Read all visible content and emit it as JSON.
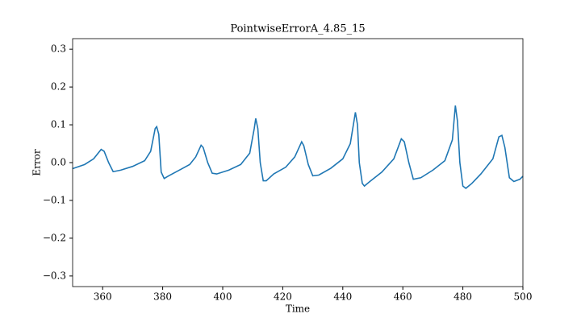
{
  "chart_data": {
    "type": "line",
    "title": "PointwiseErrorA_4.85_15",
    "xlabel": "Time",
    "ylabel": "Error",
    "x": [
      350,
      354,
      357,
      359.5,
      360.5,
      362,
      363.5,
      366,
      370,
      374,
      376,
      377.5,
      378,
      378.7,
      379.5,
      380.5,
      382,
      386,
      389,
      391,
      392.8,
      393.5,
      395,
      396.5,
      398,
      402,
      406,
      409,
      410.5,
      411,
      411.7,
      412.5,
      413.5,
      414.5,
      417,
      421,
      424,
      426.3,
      427,
      428.5,
      430,
      432,
      436,
      440,
      442.5,
      444.2,
      444.9,
      445.5,
      446.5,
      447.2,
      449,
      453,
      457,
      459.5,
      460.5,
      462,
      463.5,
      466,
      470,
      474,
      476.5,
      477.5,
      478.2,
      479,
      480,
      481,
      483,
      486,
      490,
      492,
      493,
      494,
      495.5,
      497,
      499,
      500
    ],
    "series": [
      {
        "color": "#1f77b4",
        "values": [
          -0.016,
          -0.005,
          0.01,
          0.035,
          0.03,
          0.0,
          -0.024,
          -0.02,
          -0.01,
          0.005,
          0.03,
          0.09,
          0.095,
          0.075,
          -0.025,
          -0.042,
          -0.035,
          -0.018,
          -0.005,
          0.015,
          0.046,
          0.04,
          0.0,
          -0.028,
          -0.03,
          -0.02,
          -0.005,
          0.025,
          0.09,
          0.117,
          0.09,
          0.0,
          -0.048,
          -0.048,
          -0.03,
          -0.012,
          0.015,
          0.055,
          0.045,
          -0.005,
          -0.035,
          -0.033,
          -0.015,
          0.01,
          0.05,
          0.133,
          0.1,
          0.0,
          -0.055,
          -0.062,
          -0.05,
          -0.025,
          0.01,
          0.063,
          0.055,
          0.0,
          -0.044,
          -0.04,
          -0.02,
          0.005,
          0.06,
          0.151,
          0.11,
          0.0,
          -0.062,
          -0.068,
          -0.055,
          -0.03,
          0.01,
          0.068,
          0.072,
          0.04,
          -0.04,
          -0.05,
          -0.044,
          -0.036
        ]
      }
    ],
    "xlim": [
      350,
      500
    ],
    "xticks": [
      360,
      380,
      400,
      420,
      440,
      460,
      480,
      500
    ],
    "ylim": [
      -0.328,
      0.328
    ],
    "yticks": [
      {
        "value": -0.3,
        "label": "−0.3"
      },
      {
        "value": -0.2,
        "label": "−0.2"
      },
      {
        "value": -0.1,
        "label": "−0.1"
      },
      {
        "value": 0,
        "label": "0.0"
      },
      0.1,
      0.2,
      0.3
    ]
  }
}
